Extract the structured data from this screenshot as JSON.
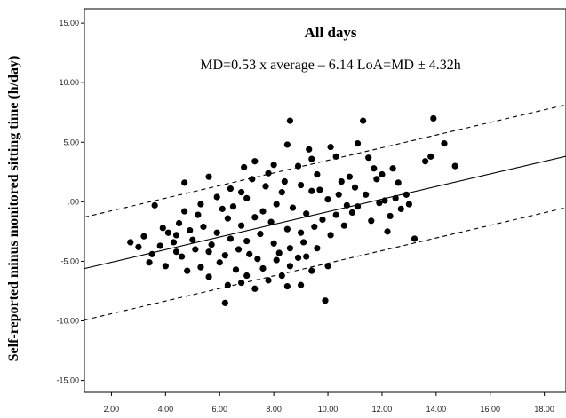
{
  "chart_data": {
    "type": "scatter",
    "title": "All days",
    "subtitle": "MD=0.53 x average – 6.14 LoA=MD ± 4.32h",
    "xlabel": "",
    "ylabel": "Self-reported minus monitored sitting time (h/day)",
    "xlim": [
      1.0,
      18.8
    ],
    "ylim": [
      -16.0,
      16.2
    ],
    "x_ticks": [
      "2.00",
      "4.00",
      "6.00",
      "8.00",
      "10.00",
      "12.00",
      "14.00",
      "16.00",
      "18.00"
    ],
    "y_ticks": [
      "15.00",
      "10.00",
      "5.00",
      ".00",
      "-5.00",
      "-10.00",
      "-15.00"
    ],
    "regression": {
      "slope": 0.53,
      "intercept": -6.14,
      "loa": 4.32
    },
    "grid": false,
    "legend": "none",
    "marker_color": "#000000",
    "points": [
      [
        8.6,
        6.8
      ],
      [
        11.3,
        6.8
      ],
      [
        13.9,
        7.0
      ],
      [
        14.3,
        4.9
      ],
      [
        14.7,
        3.0
      ],
      [
        13.6,
        3.4
      ],
      [
        13.8,
        3.8
      ],
      [
        9.9,
        -8.3
      ],
      [
        6.2,
        -8.5
      ],
      [
        13.2,
        -3.1
      ],
      [
        2.7,
        -3.4
      ],
      [
        3.2,
        -2.9
      ],
      [
        4.7,
        1.6
      ],
      [
        3.6,
        -0.3
      ],
      [
        12.4,
        2.8
      ],
      [
        12.9,
        0.6
      ],
      [
        12.7,
        -0.6
      ],
      [
        11.8,
        1.9
      ],
      [
        12.1,
        0.1
      ],
      [
        11.1,
        4.9
      ],
      [
        10.3,
        3.8
      ],
      [
        9.3,
        4.4
      ],
      [
        7.3,
        3.4
      ],
      [
        6.9,
        2.9
      ],
      [
        8.0,
        3.1
      ],
      [
        5.6,
        2.1
      ],
      [
        10.0,
        -5.4
      ],
      [
        7.3,
        -7.3
      ],
      [
        6.8,
        -6.8
      ],
      [
        8.3,
        -6.2
      ],
      [
        9.0,
        -7.0
      ],
      [
        5.6,
        -6.3
      ],
      [
        4.8,
        -5.8
      ],
      [
        4.0,
        -5.4
      ],
      [
        3.4,
        -5.1
      ],
      [
        12.2,
        -2.5
      ],
      [
        11.6,
        -1.6
      ],
      [
        12.5,
        0.3
      ],
      [
        10.8,
        2.1
      ],
      [
        10.4,
        0.6
      ],
      [
        11.1,
        -0.4
      ],
      [
        9.6,
        2.3
      ],
      [
        8.9,
        3.0
      ],
      [
        9.0,
        1.4
      ],
      [
        7.2,
        1.9
      ],
      [
        6.4,
        1.1
      ],
      [
        5.9,
        0.4
      ],
      [
        6.1,
        -0.6
      ],
      [
        5.2,
        -1.1
      ],
      [
        4.5,
        -1.8
      ],
      [
        4.1,
        -2.6
      ],
      [
        3.8,
        -3.7
      ],
      [
        4.6,
        -4.6
      ],
      [
        5.0,
        -3.2
      ],
      [
        5.6,
        -4.2
      ],
      [
        6.0,
        -5.1
      ],
      [
        6.6,
        -5.7
      ],
      [
        7.1,
        -4.4
      ],
      [
        7.6,
        -5.6
      ],
      [
        8.1,
        -4.9
      ],
      [
        8.6,
        -5.4
      ],
      [
        9.2,
        -4.6
      ],
      [
        9.6,
        -3.9
      ],
      [
        10.1,
        -2.8
      ],
      [
        10.6,
        -2.0
      ],
      [
        10.9,
        -0.9
      ],
      [
        11.4,
        0.6
      ],
      [
        11.9,
        -0.1
      ],
      [
        7.8,
        2.4
      ],
      [
        8.4,
        1.7
      ],
      [
        9.4,
        0.9
      ],
      [
        10.0,
        0.2
      ],
      [
        6.5,
        -0.4
      ],
      [
        7.0,
        0.3
      ],
      [
        7.6,
        -0.8
      ],
      [
        8.1,
        -0.2
      ],
      [
        8.7,
        -0.5
      ],
      [
        9.2,
        -1.0
      ],
      [
        9.8,
        -1.5
      ],
      [
        6.3,
        -1.4
      ],
      [
        6.8,
        -2.0
      ],
      [
        7.3,
        -1.3
      ],
      [
        7.9,
        -1.7
      ],
      [
        8.5,
        -2.3
      ],
      [
        9.0,
        -2.6
      ],
      [
        9.5,
        -2.1
      ],
      [
        5.4,
        -2.1
      ],
      [
        5.9,
        -2.6
      ],
      [
        6.4,
        -3.1
      ],
      [
        7.0,
        -3.3
      ],
      [
        7.5,
        -2.7
      ],
      [
        8.0,
        -3.5
      ],
      [
        8.6,
        -3.9
      ],
      [
        9.1,
        -3.4
      ],
      [
        5.1,
        -4.0
      ],
      [
        5.7,
        -3.6
      ],
      [
        6.2,
        -4.5
      ],
      [
        6.7,
        -4.0
      ],
      [
        7.4,
        -4.8
      ],
      [
        8.2,
        -4.3
      ],
      [
        8.9,
        -4.7
      ],
      [
        4.3,
        -3.4
      ],
      [
        4.9,
        -2.4
      ],
      [
        3.9,
        -2.2
      ],
      [
        10.3,
        -1.1
      ],
      [
        10.7,
        -0.3
      ],
      [
        11.0,
        1.2
      ],
      [
        10.5,
        1.7
      ],
      [
        9.7,
        1.0
      ],
      [
        8.3,
        0.8
      ],
      [
        7.7,
        1.3
      ],
      [
        6.8,
        0.8
      ],
      [
        5.3,
        -0.2
      ],
      [
        4.7,
        -0.8
      ],
      [
        4.4,
        -2.8
      ],
      [
        11.7,
        2.8
      ],
      [
        12.6,
        1.6
      ],
      [
        12.0,
        2.3
      ],
      [
        9.4,
        3.6
      ],
      [
        8.5,
        4.8
      ],
      [
        10.1,
        4.6
      ],
      [
        11.5,
        3.7
      ],
      [
        13.0,
        -0.2
      ],
      [
        12.3,
        -1.2
      ],
      [
        7.0,
        -6.2
      ],
      [
        7.8,
        -6.6
      ],
      [
        8.5,
        -7.1
      ],
      [
        9.4,
        -5.8
      ],
      [
        6.3,
        -7.0
      ],
      [
        5.3,
        -5.5
      ],
      [
        4.4,
        -4.2
      ],
      [
        3.5,
        -4.4
      ],
      [
        3.0,
        -3.8
      ]
    ]
  }
}
